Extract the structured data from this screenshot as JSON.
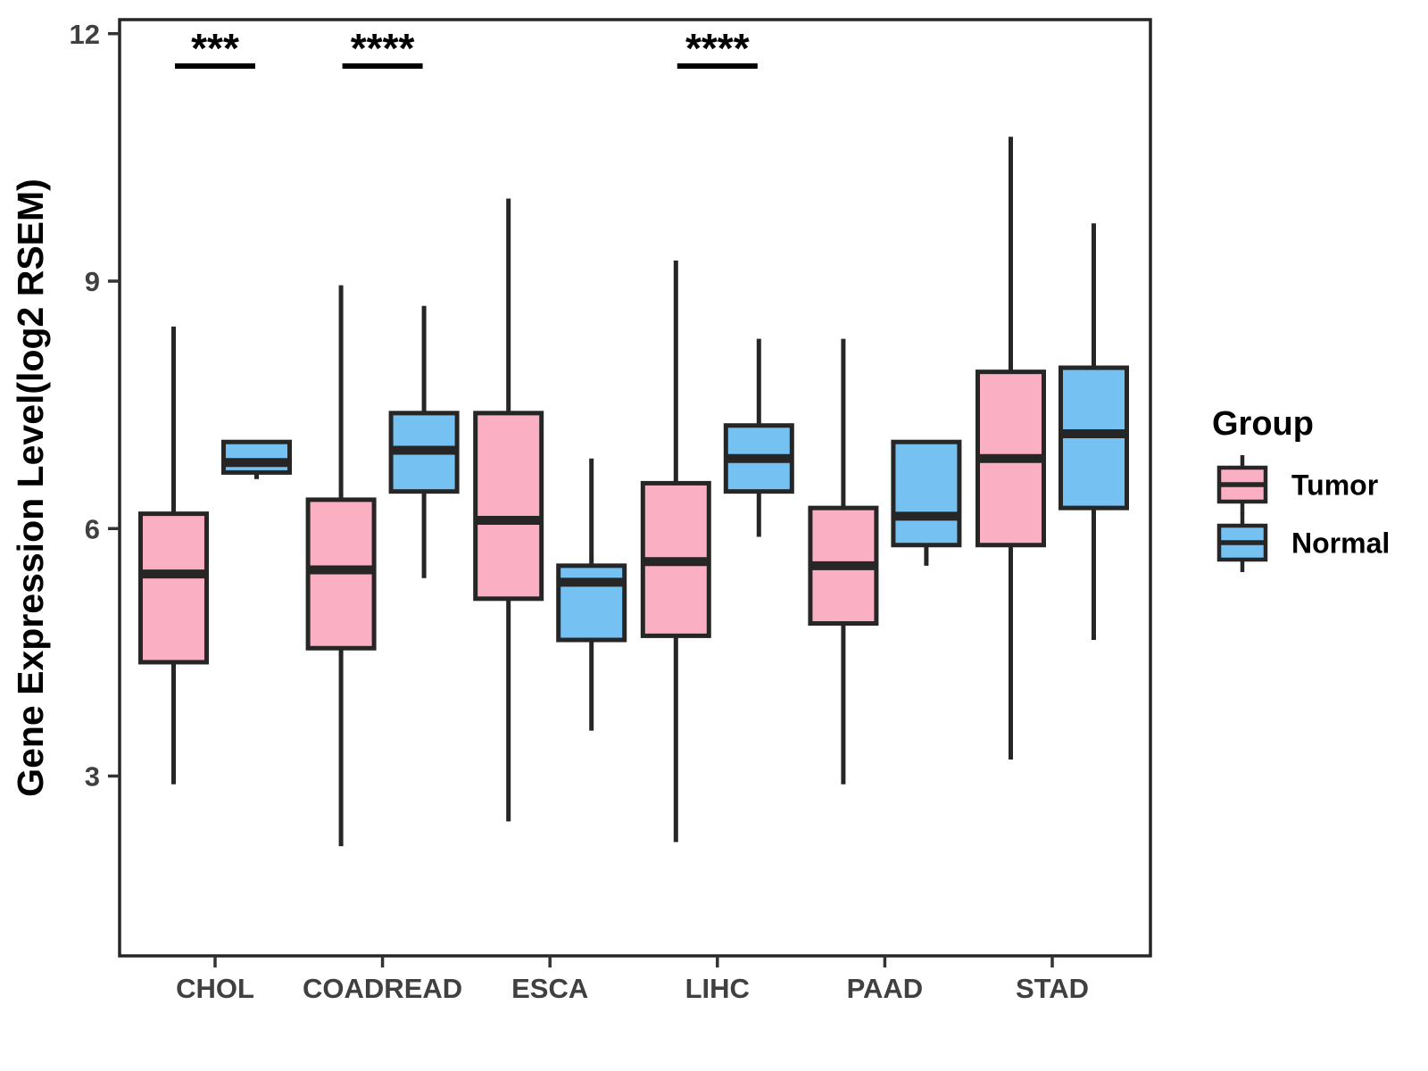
{
  "chart_data": {
    "type": "boxplot",
    "title": "",
    "xlabel": "",
    "ylabel": "Gene Expression Level(log2 RSEM)",
    "categories": [
      "CHOL",
      "COADREAD",
      "ESCA",
      "LIHC",
      "PAAD",
      "STAD"
    ],
    "ylim": [
      0.82,
      12.17
    ],
    "yticks": [
      "3",
      "6",
      "9",
      "12"
    ],
    "grid": "off",
    "colors": {
      "tumor_fill": "#FBAFC2",
      "normal_fill": "#74C1F2",
      "line": "#262626",
      "tick_text": "#404040",
      "text": "#000000"
    },
    "legend": {
      "title": "Group",
      "position": "right",
      "entries": [
        {
          "label": "Tumor",
          "color": "#FBAFC2"
        },
        {
          "label": "Normal",
          "color": "#74C1F2"
        }
      ]
    },
    "series": [
      {
        "name": "Tumor",
        "color": "#FBAFC2",
        "boxes": [
          {
            "category": "CHOL",
            "min": 2.9,
            "q1": 4.38,
            "median": 5.45,
            "q3": 6.18,
            "max": 8.45
          },
          {
            "category": "COADREAD",
            "min": 2.15,
            "q1": 4.55,
            "median": 5.5,
            "q3": 6.35,
            "max": 8.95
          },
          {
            "category": "ESCA",
            "min": 2.45,
            "q1": 5.15,
            "median": 6.1,
            "q3": 7.4,
            "max": 10.0
          },
          {
            "category": "LIHC",
            "min": 2.2,
            "q1": 4.7,
            "median": 5.6,
            "q3": 6.55,
            "max": 9.25
          },
          {
            "category": "PAAD",
            "min": 2.9,
            "q1": 4.85,
            "median": 5.55,
            "q3": 6.25,
            "max": 8.3
          },
          {
            "category": "STAD",
            "min": 3.2,
            "q1": 5.8,
            "median": 6.85,
            "q3": 7.9,
            "max": 10.75
          }
        ]
      },
      {
        "name": "Normal",
        "color": "#74C1F2",
        "boxes": [
          {
            "category": "CHOL",
            "min": 6.6,
            "q1": 6.68,
            "median": 6.8,
            "q3": 7.05,
            "max": 7.05
          },
          {
            "category": "COADREAD",
            "min": 5.4,
            "q1": 6.45,
            "median": 6.95,
            "q3": 7.4,
            "max": 8.7
          },
          {
            "category": "ESCA",
            "min": 3.55,
            "q1": 4.65,
            "median": 5.35,
            "q3": 5.55,
            "max": 6.85
          },
          {
            "category": "LIHC",
            "min": 5.9,
            "q1": 6.45,
            "median": 6.85,
            "q3": 7.25,
            "max": 8.3
          },
          {
            "category": "PAAD",
            "min": 5.55,
            "q1": 5.8,
            "median": 6.15,
            "q3": 7.05,
            "max": 7.05
          },
          {
            "category": "STAD",
            "min": 4.65,
            "q1": 6.25,
            "median": 7.15,
            "q3": 7.95,
            "max": 9.7
          }
        ]
      }
    ],
    "annotations": [
      {
        "category": "CHOL",
        "label": "***"
      },
      {
        "category": "COADREAD",
        "label": "****"
      },
      {
        "category": "LIHC",
        "label": "****"
      }
    ]
  }
}
